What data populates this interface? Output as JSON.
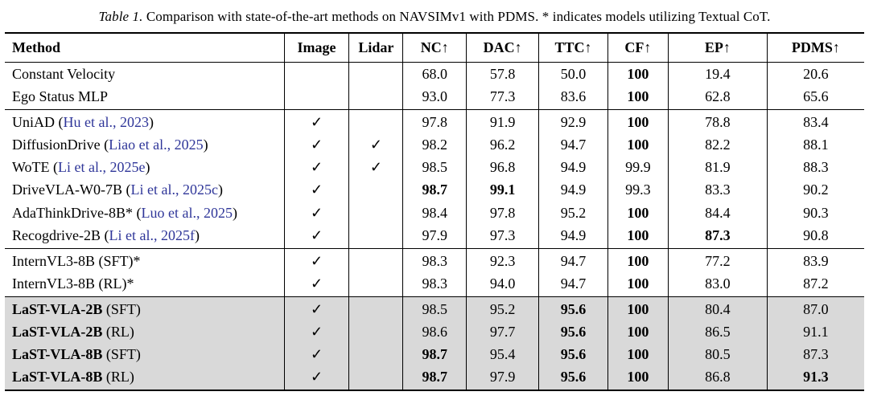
{
  "caption": {
    "label": "Table 1.",
    "text": "Comparison with state-of-the-art methods on NAVSIMv1 with PDMS. * indicates models utilizing Textual CoT."
  },
  "icons": {
    "check": "✓"
  },
  "colors": {
    "citation": "#2f3699",
    "highlight": "#d9d9d9"
  },
  "table": {
    "columns": [
      "Method",
      "Image",
      "Lidar",
      "NC↑",
      "DAC↑",
      "TTC↑",
      "CF↑",
      "EP↑",
      "PDMS↑"
    ],
    "groups": [
      {
        "highlight": false,
        "rows": [
          {
            "method": {
              "name": "Constant Velocity",
              "bold": false,
              "cite": "",
              "suffix": ""
            },
            "image": false,
            "lidar": false,
            "values": [
              "68.0",
              "57.8",
              "50.0",
              "100",
              "19.4",
              "20.6"
            ],
            "bold": [
              false,
              false,
              false,
              true,
              false,
              false
            ]
          },
          {
            "method": {
              "name": "Ego Status MLP",
              "bold": false,
              "cite": "",
              "suffix": ""
            },
            "image": false,
            "lidar": false,
            "values": [
              "93.0",
              "77.3",
              "83.6",
              "100",
              "62.8",
              "65.6"
            ],
            "bold": [
              false,
              false,
              false,
              true,
              false,
              false
            ]
          }
        ]
      },
      {
        "highlight": false,
        "rows": [
          {
            "method": {
              "name": "UniAD",
              "bold": false,
              "cite": "Hu et al., 2023",
              "suffix": ""
            },
            "image": true,
            "lidar": false,
            "values": [
              "97.8",
              "91.9",
              "92.9",
              "100",
              "78.8",
              "83.4"
            ],
            "bold": [
              false,
              false,
              false,
              true,
              false,
              false
            ]
          },
          {
            "method": {
              "name": "DiffusionDrive",
              "bold": false,
              "cite": "Liao et al., 2025",
              "suffix": ""
            },
            "image": true,
            "lidar": true,
            "values": [
              "98.2",
              "96.2",
              "94.7",
              "100",
              "82.2",
              "88.1"
            ],
            "bold": [
              false,
              false,
              false,
              true,
              false,
              false
            ]
          },
          {
            "method": {
              "name": "WoTE",
              "bold": false,
              "cite": "Li et al., 2025e",
              "suffix": ""
            },
            "image": true,
            "lidar": true,
            "values": [
              "98.5",
              "96.8",
              "94.9",
              "99.9",
              "81.9",
              "88.3"
            ],
            "bold": [
              false,
              false,
              false,
              false,
              false,
              false
            ]
          },
          {
            "method": {
              "name": "DriveVLA-W0-7B",
              "bold": false,
              "cite": "Li et al., 2025c",
              "suffix": ""
            },
            "image": true,
            "lidar": false,
            "values": [
              "98.7",
              "99.1",
              "94.9",
              "99.3",
              "83.3",
              "90.2"
            ],
            "bold": [
              true,
              true,
              false,
              false,
              false,
              false
            ]
          },
          {
            "method": {
              "name": "AdaThinkDrive-8B*",
              "bold": false,
              "cite": "Luo et al., 2025",
              "suffix": ""
            },
            "image": true,
            "lidar": false,
            "values": [
              "98.4",
              "97.8",
              "95.2",
              "100",
              "84.4",
              "90.3"
            ],
            "bold": [
              false,
              false,
              false,
              true,
              false,
              false
            ]
          },
          {
            "method": {
              "name": "Recogdrive-2B",
              "bold": false,
              "cite": "Li et al., 2025f",
              "suffix": ""
            },
            "image": true,
            "lidar": false,
            "values": [
              "97.9",
              "97.3",
              "94.9",
              "100",
              "87.3",
              "90.8"
            ],
            "bold": [
              false,
              false,
              false,
              true,
              true,
              false
            ]
          }
        ]
      },
      {
        "highlight": false,
        "rows": [
          {
            "method": {
              "name": "InternVL3-8B (SFT)*",
              "bold": false,
              "cite": "",
              "suffix": ""
            },
            "image": true,
            "lidar": false,
            "values": [
              "98.3",
              "92.3",
              "94.7",
              "100",
              "77.2",
              "83.9"
            ],
            "bold": [
              false,
              false,
              false,
              true,
              false,
              false
            ]
          },
          {
            "method": {
              "name": "InternVL3-8B (RL)*",
              "bold": false,
              "cite": "",
              "suffix": ""
            },
            "image": true,
            "lidar": false,
            "values": [
              "98.3",
              "94.0",
              "94.7",
              "100",
              "83.0",
              "87.2"
            ],
            "bold": [
              false,
              false,
              false,
              true,
              false,
              false
            ]
          }
        ]
      },
      {
        "highlight": true,
        "rows": [
          {
            "method": {
              "name": "LaST-VLA-2B",
              "bold": true,
              "cite": "",
              "suffix": " (SFT)"
            },
            "image": true,
            "lidar": false,
            "values": [
              "98.5",
              "95.2",
              "95.6",
              "100",
              "80.4",
              "87.0"
            ],
            "bold": [
              false,
              false,
              true,
              true,
              false,
              false
            ]
          },
          {
            "method": {
              "name": "LaST-VLA-2B",
              "bold": true,
              "cite": "",
              "suffix": " (RL)"
            },
            "image": true,
            "lidar": false,
            "values": [
              "98.6",
              "97.7",
              "95.6",
              "100",
              "86.5",
              "91.1"
            ],
            "bold": [
              false,
              false,
              true,
              true,
              false,
              false
            ]
          },
          {
            "method": {
              "name": "LaST-VLA-8B",
              "bold": true,
              "cite": "",
              "suffix": " (SFT)"
            },
            "image": true,
            "lidar": false,
            "values": [
              "98.7",
              "95.4",
              "95.6",
              "100",
              "80.5",
              "87.3"
            ],
            "bold": [
              true,
              false,
              true,
              true,
              false,
              false
            ]
          },
          {
            "method": {
              "name": "LaST-VLA-8B",
              "bold": true,
              "cite": "",
              "suffix": " (RL)"
            },
            "image": true,
            "lidar": false,
            "values": [
              "98.7",
              "97.9",
              "95.6",
              "100",
              "86.8",
              "91.3"
            ],
            "bold": [
              true,
              false,
              true,
              true,
              false,
              true
            ]
          }
        ]
      }
    ]
  }
}
